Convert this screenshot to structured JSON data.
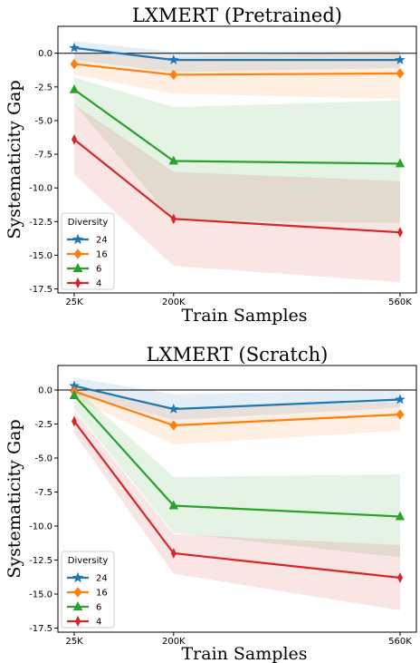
{
  "chart_data": [
    {
      "type": "line",
      "title": "LXMERT (Pretrained)",
      "xlabel": "Train Samples",
      "ylabel": "Systematicity Gap",
      "x": [
        "25K",
        "200K",
        "560K"
      ],
      "ylim": [
        -17.8,
        2.0
      ],
      "yticks": [
        "0.0",
        "-2.5",
        "-5.0",
        "-7.5",
        "-10.0",
        "-12.5",
        "-15.0",
        "-17.5"
      ],
      "legend_title": "Diversity",
      "legend_position": "lower-left",
      "baseline": 0,
      "series": [
        {
          "name": "24",
          "color": "#1f77b4",
          "marker": "star",
          "values": [
            0.4,
            -0.5,
            -0.5
          ],
          "band_low": [
            -0.5,
            -1.4,
            -1.1
          ],
          "band_high": [
            0.9,
            0.1,
            0.2
          ]
        },
        {
          "name": "16",
          "color": "#ff7f0e",
          "marker": "diamond",
          "values": [
            -0.8,
            -1.6,
            -1.5
          ],
          "band_low": [
            -1.6,
            -3.0,
            -3.4
          ],
          "band_high": [
            0.0,
            -0.3,
            0.2
          ]
        },
        {
          "name": "6",
          "color": "#2ca02c",
          "marker": "triangle",
          "values": [
            -2.7,
            -8.0,
            -8.2
          ],
          "band_low": [
            -3.8,
            -12.4,
            -12.6
          ],
          "band_high": [
            -1.8,
            -4.0,
            -3.5
          ]
        },
        {
          "name": "4",
          "color": "#d62728",
          "marker": "thin-diamond",
          "values": [
            -6.4,
            -12.3,
            -13.3
          ],
          "band_low": [
            -9.0,
            -15.8,
            -17.0
          ],
          "band_high": [
            -3.8,
            -8.8,
            -9.5
          ]
        }
      ]
    },
    {
      "type": "line",
      "title": "LXMERT (Scratch)",
      "xlabel": "Train Samples",
      "ylabel": "Systematicity Gap",
      "x": [
        "25K",
        "200K",
        "560K"
      ],
      "ylim": [
        -17.8,
        1.8
      ],
      "yticks": [
        "0.0",
        "-2.5",
        "-5.0",
        "-7.5",
        "-10.0",
        "-12.5",
        "-15.0",
        "-17.5"
      ],
      "legend_title": "Diversity",
      "legend_position": "lower-left",
      "baseline": 0,
      "series": [
        {
          "name": "24",
          "color": "#1f77b4",
          "marker": "star",
          "values": [
            0.3,
            -1.4,
            -0.7
          ],
          "band_low": [
            -0.3,
            -2.2,
            -1.3
          ],
          "band_high": [
            0.9,
            -0.3,
            0.0
          ]
        },
        {
          "name": "16",
          "color": "#ff7f0e",
          "marker": "diamond",
          "values": [
            -0.1,
            -2.6,
            -1.8
          ],
          "band_low": [
            -0.6,
            -4.0,
            -3.0
          ],
          "band_high": [
            0.4,
            -1.3,
            -0.9
          ]
        },
        {
          "name": "6",
          "color": "#2ca02c",
          "marker": "triangle",
          "values": [
            -0.4,
            -8.5,
            -9.3
          ],
          "band_low": [
            -1.4,
            -10.5,
            -12.3
          ],
          "band_high": [
            0.2,
            -6.4,
            -6.2
          ]
        },
        {
          "name": "4",
          "color": "#d62728",
          "marker": "thin-diamond",
          "values": [
            -2.3,
            -12.0,
            -13.8
          ],
          "band_low": [
            -3.2,
            -13.5,
            -16.2
          ],
          "band_high": [
            -1.5,
            -10.6,
            -11.4
          ]
        }
      ]
    }
  ]
}
